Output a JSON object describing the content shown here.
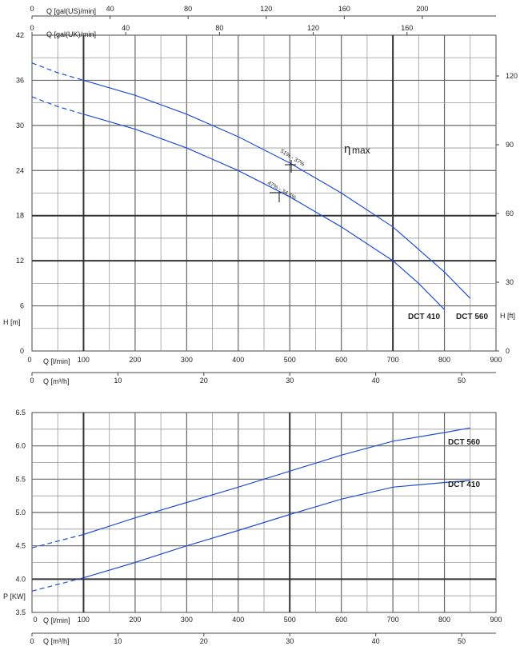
{
  "chart_data": [
    {
      "type": "line",
      "name": "head-curve",
      "top_axes": {
        "us_label": "Q [gal(US)/min]",
        "us_ticks": [
          "0",
          "40",
          "80",
          "120",
          "160",
          "200"
        ],
        "uk_label": "Q [gal(UK)/min]",
        "uk_ticks": [
          "0",
          "40",
          "80",
          "120",
          "160"
        ]
      },
      "left_axis": {
        "label": "H [m]",
        "ticks": [
          "0",
          "6",
          "12",
          "18",
          "24",
          "30",
          "36",
          "42"
        ],
        "ylim": [
          0,
          42
        ]
      },
      "right_axis": {
        "label": "H [ft]",
        "ticks": [
          "0",
          "30",
          "60",
          "90",
          "120"
        ]
      },
      "x_axis": {
        "label": "Q [l/min]",
        "ticks": [
          "0",
          "100",
          "200",
          "300",
          "400",
          "500",
          "600",
          "700",
          "800",
          "900"
        ],
        "xlim": [
          0,
          900
        ]
      },
      "x2_axis": {
        "label": "Q [m³/h]",
        "ticks": [
          "0",
          "10",
          "20",
          "30",
          "40",
          "50"
        ]
      },
      "annotations": {
        "eta": "η",
        "eta_sub": "max",
        "band_560": "51% - 37%",
        "band_410": "47% - 34.5%"
      },
      "series": [
        {
          "name": "DCT 560",
          "dashed_x": [
            0,
            50,
            100
          ],
          "dashed_y": [
            38.3,
            37.0,
            36.0
          ],
          "x": [
            100,
            200,
            300,
            400,
            500,
            600,
            700,
            800,
            850
          ],
          "y": [
            36.0,
            34.0,
            31.5,
            28.5,
            25.0,
            21.0,
            16.5,
            10.5,
            7.0
          ]
        },
        {
          "name": "DCT 410",
          "dashed_x": [
            0,
            50,
            100
          ],
          "dashed_y": [
            33.8,
            32.5,
            31.5
          ],
          "x": [
            100,
            200,
            300,
            400,
            500,
            600,
            700,
            750,
            800
          ],
          "y": [
            31.5,
            29.5,
            27.0,
            24.0,
            20.5,
            16.5,
            12.0,
            9.0,
            5.5
          ]
        }
      ]
    },
    {
      "type": "line",
      "name": "power-curve",
      "left_axis": {
        "label": "P [KW]",
        "ticks": [
          "3.5",
          "4.0",
          "4.5",
          "5.0",
          "5.5",
          "6.0",
          "6.5"
        ],
        "ylim": [
          3.5,
          6.5
        ]
      },
      "x_axis": {
        "label": "Q [l/min]",
        "ticks": [
          "0",
          "100",
          "200",
          "300",
          "400",
          "500",
          "600",
          "700",
          "800",
          "900"
        ],
        "xlim": [
          0,
          900
        ]
      },
      "x2_axis": {
        "label": "Q [m³/h]",
        "ticks": [
          "0",
          "10",
          "20",
          "30",
          "40",
          "50"
        ]
      },
      "series": [
        {
          "name": "DCT 560",
          "dashed_x": [
            0,
            50,
            100
          ],
          "dashed_y": [
            4.47,
            4.57,
            4.67
          ],
          "x": [
            100,
            200,
            300,
            400,
            500,
            600,
            700,
            800,
            850
          ],
          "y": [
            4.67,
            4.92,
            5.15,
            5.38,
            5.62,
            5.86,
            6.07,
            6.2,
            6.27
          ]
        },
        {
          "name": "DCT 410",
          "dashed_x": [
            0,
            50,
            100
          ],
          "dashed_y": [
            3.82,
            3.92,
            4.02
          ],
          "x": [
            100,
            200,
            300,
            400,
            500,
            600,
            700,
            800,
            850
          ],
          "y": [
            4.02,
            4.25,
            4.5,
            4.73,
            4.97,
            5.2,
            5.38,
            5.45,
            5.48
          ]
        }
      ]
    }
  ]
}
